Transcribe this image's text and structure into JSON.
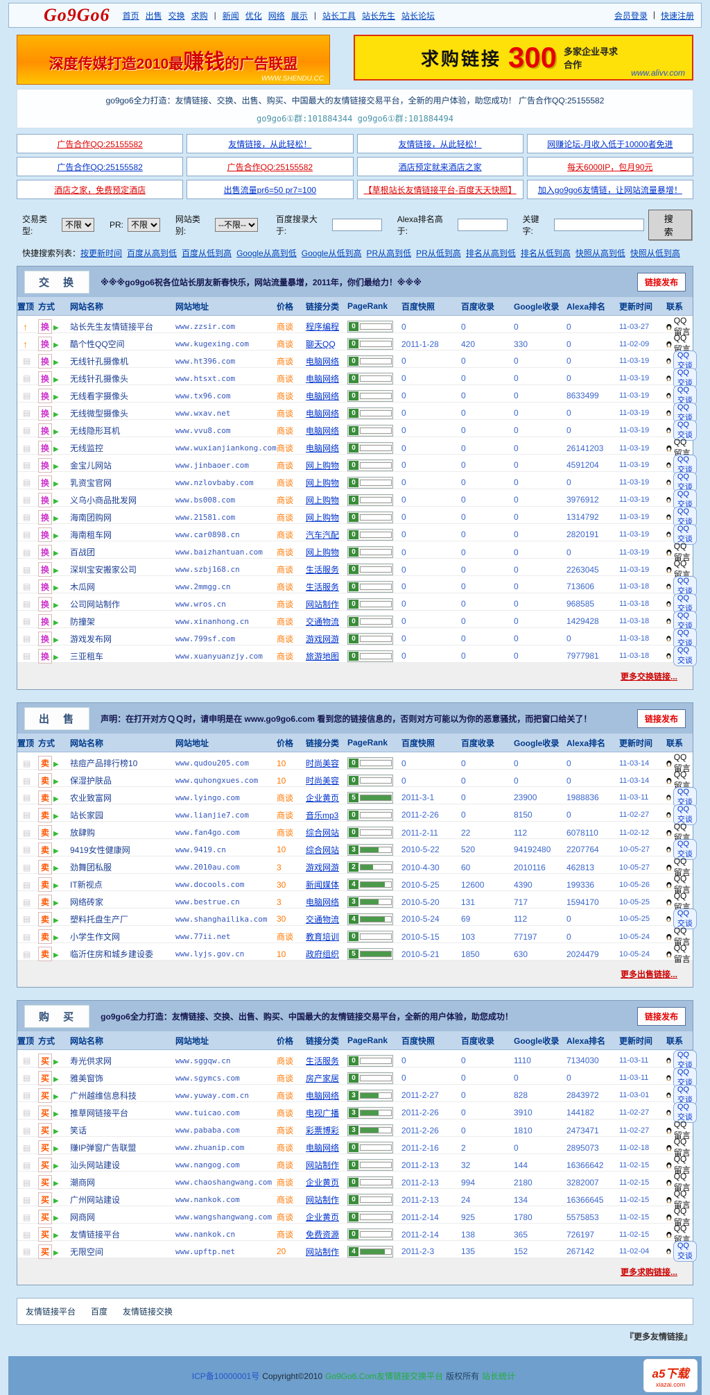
{
  "header": {
    "logo": "Go9Go6",
    "nav": [
      "首页",
      "出售",
      "交换",
      "求购",
      "|",
      "新闻",
      "优化",
      "网络",
      "展示",
      "|",
      "站长工具",
      "站长先生",
      "站长论坛"
    ],
    "right": [
      "会员登录",
      "快速注册"
    ]
  },
  "banners": {
    "left": {
      "text_pre": "深度传媒打造2010最",
      "text_big": "赚钱",
      "text_post": "的广告联盟",
      "url": "WWW.SHENDU.CC"
    },
    "right": {
      "t1": "求购链接",
      "big": "300",
      "t2": "多家企业寻求合作",
      "url": "www.alivv.com"
    }
  },
  "intro": {
    "line1": "go9go6全力打造：友情链接、交换、出售、购买、中国最大的友情链接交易平台，全新的用户体验，助您成功！ 广告合作QQ:25155582",
    "line2": "go9go6①群:101884344 go9go6①群:101884494"
  },
  "ad_grid": [
    [
      {
        "text": "广告合作QQ:25155582",
        "color": "red"
      },
      {
        "text": "友情链接，从此轻松！",
        "color": "blue"
      },
      {
        "text": "友情链接，从此轻松！",
        "color": "blue"
      },
      {
        "text": "网赚论坛-月收入低于10000者免进",
        "color": "blue"
      }
    ],
    [
      {
        "text": "广告合作QQ:25155582",
        "color": "blue"
      },
      {
        "text": "广告合作QQ:25155582",
        "color": "red"
      },
      {
        "text": "酒店预定就来酒店之家",
        "color": "blue"
      },
      {
        "text": "每天6000IP，包月90元",
        "color": "red"
      }
    ],
    [
      {
        "text": "酒店之家，免费预定酒店",
        "color": "red"
      },
      {
        "text": "出售流量pr6=50 pr7=100",
        "color": "blue"
      },
      {
        "text": "【草根站长友情链接平台-百度天天快照】",
        "color": "red"
      },
      {
        "text": "加入go9go6友情链，让网站流量暴增！",
        "color": "blue"
      }
    ]
  ],
  "filter": {
    "type_label": "交易类型:",
    "type_value": "不限",
    "pr_label": "PR:",
    "pr_value": "不限",
    "cat_label": "网站类别:",
    "cat_value": "--不限--",
    "baidu_label": "百度搜录大于:",
    "alexa_label": "Alexa排名高于:",
    "keyword_label": "关键字:",
    "search_label": "搜 索"
  },
  "quick_search": {
    "label": "快捷搜索列表：",
    "links": [
      "按更新时间",
      "百度从高到低",
      "百度从低到高",
      "Google从高到低",
      "Google从低到高",
      "PR从高到低",
      "PR从低到高",
      "排名从高到低",
      "排名从低到高",
      "快照从高到低",
      "快照从低到高"
    ]
  },
  "table_columns": [
    "置顶",
    "方式",
    "网站名称",
    "网站地址",
    "价格",
    "链接分类",
    "PageRank",
    "百度快照",
    "百度收录",
    "Google收录",
    "Alexa排名",
    "更新时间",
    "联系"
  ],
  "publish_label": "链接发布",
  "tables": [
    {
      "title": "交 换",
      "message": "※※※go9go6祝各位站长朋友新春快乐，网站流量暴增，2011年，你们最给力！※※※",
      "way": "换",
      "more": "更多交换链接...",
      "rows": [
        {
          "top": "hot",
          "name": "站长先生友情链接平台",
          "url": "www.zzsir.com",
          "price": "商谈",
          "cat": "程序编程",
          "pr": 0,
          "snap": "0",
          "baidu": "0",
          "google": "0",
          "alexa": "0",
          "time": "11-03-27",
          "contact": "QQ留言"
        },
        {
          "top": "hot",
          "name": "酷个性QQ空间",
          "url": "www.kugexing.com",
          "price": "商谈",
          "cat": "聊天QQ",
          "pr": 0,
          "snap": "2011-1-28",
          "baidu": "420",
          "google": "330",
          "alexa": "0",
          "time": "11-02-09",
          "contact": "QQ留言"
        },
        {
          "top": "",
          "name": "无线针孔摄像机",
          "url": "www.ht396.com",
          "price": "商谈",
          "cat": "电脑网络",
          "pr": 0,
          "snap": "0",
          "baidu": "0",
          "google": "0",
          "alexa": "0",
          "time": "11-03-19",
          "contact": "QQ交谈"
        },
        {
          "top": "",
          "name": "无线针孔摄像头",
          "url": "www.htsxt.com",
          "price": "商谈",
          "cat": "电脑网络",
          "pr": 0,
          "snap": "0",
          "baidu": "0",
          "google": "0",
          "alexa": "0",
          "time": "11-03-19",
          "contact": "QQ交谈"
        },
        {
          "top": "",
          "name": "无线看字摄像头",
          "url": "www.tx96.com",
          "price": "商谈",
          "cat": "电脑网络",
          "pr": 0,
          "snap": "0",
          "baidu": "0",
          "google": "0",
          "alexa": "8633499",
          "time": "11-03-19",
          "contact": "QQ交谈"
        },
        {
          "top": "",
          "name": "无线微型摄像头",
          "url": "www.wxav.net",
          "price": "商谈",
          "cat": "电脑网络",
          "pr": 0,
          "snap": "0",
          "baidu": "0",
          "google": "0",
          "alexa": "0",
          "time": "11-03-19",
          "contact": "QQ交谈"
        },
        {
          "top": "",
          "name": "无线隐形耳机",
          "url": "www.vvu8.com",
          "price": "商谈",
          "cat": "电脑网络",
          "pr": 0,
          "snap": "0",
          "baidu": "0",
          "google": "0",
          "alexa": "0",
          "time": "11-03-19",
          "contact": "QQ交谈"
        },
        {
          "top": "",
          "name": "无线监控",
          "url": "www.wuxianjiankong.com",
          "price": "商谈",
          "cat": "电脑网络",
          "pr": 0,
          "snap": "0",
          "baidu": "0",
          "google": "0",
          "alexa": "26141203",
          "time": "11-03-19",
          "contact": "QQ留言"
        },
        {
          "top": "",
          "name": "金宝儿网站",
          "url": "www.jinbaoer.com",
          "price": "商谈",
          "cat": "网上购物",
          "pr": 0,
          "snap": "0",
          "baidu": "0",
          "google": "0",
          "alexa": "4591204",
          "time": "11-03-19",
          "contact": "QQ交谈"
        },
        {
          "top": "",
          "name": "乳资宝官网",
          "url": "www.nzlovbaby.com",
          "price": "商谈",
          "cat": "网上购物",
          "pr": 0,
          "snap": "0",
          "baidu": "0",
          "google": "0",
          "alexa": "0",
          "time": "11-03-19",
          "contact": "QQ交谈"
        },
        {
          "top": "",
          "name": "义乌小商品批发网",
          "url": "www.bs008.com",
          "price": "商谈",
          "cat": "网上购物",
          "pr": 0,
          "snap": "0",
          "baidu": "0",
          "google": "0",
          "alexa": "3976912",
          "time": "11-03-19",
          "contact": "QQ交谈"
        },
        {
          "top": "",
          "name": "海南团购网",
          "url": "www.21581.com",
          "price": "商谈",
          "cat": "网上购物",
          "pr": 0,
          "snap": "0",
          "baidu": "0",
          "google": "0",
          "alexa": "1314792",
          "time": "11-03-19",
          "contact": "QQ交谈"
        },
        {
          "top": "",
          "name": "海南租车网",
          "url": "www.car0898.cn",
          "price": "商谈",
          "cat": "汽车汽配",
          "pr": 0,
          "snap": "0",
          "baidu": "0",
          "google": "0",
          "alexa": "2820191",
          "time": "11-03-19",
          "contact": "QQ交谈"
        },
        {
          "top": "",
          "name": "百战团",
          "url": "www.baizhantuan.com",
          "price": "商谈",
          "cat": "网上购物",
          "pr": 0,
          "snap": "0",
          "baidu": "0",
          "google": "0",
          "alexa": "0",
          "time": "11-03-19",
          "contact": "QQ留言"
        },
        {
          "top": "",
          "name": "深圳宝安搬家公司",
          "url": "www.szbj168.cn",
          "price": "商谈",
          "cat": "生活服务",
          "pr": 0,
          "snap": "0",
          "baidu": "0",
          "google": "0",
          "alexa": "2263045",
          "time": "11-03-19",
          "contact": "QQ留言"
        },
        {
          "top": "",
          "name": "木瓜网",
          "url": "www.2mmgg.cn",
          "price": "商谈",
          "cat": "生活服务",
          "pr": 0,
          "snap": "0",
          "baidu": "0",
          "google": "0",
          "alexa": "713606",
          "time": "11-03-18",
          "contact": "QQ交谈"
        },
        {
          "top": "",
          "name": "公司网站制作",
          "url": "www.wros.cn",
          "price": "商谈",
          "cat": "网站制作",
          "pr": 0,
          "snap": "0",
          "baidu": "0",
          "google": "0",
          "alexa": "968585",
          "time": "11-03-18",
          "contact": "QQ交谈"
        },
        {
          "top": "",
          "name": "防撞架",
          "url": "www.xinanhong.cn",
          "price": "商谈",
          "cat": "交通物流",
          "pr": 0,
          "snap": "0",
          "baidu": "0",
          "google": "0",
          "alexa": "1429428",
          "time": "11-03-18",
          "contact": "QQ交谈"
        },
        {
          "top": "",
          "name": "游戏发布网",
          "url": "www.799sf.com",
          "price": "商谈",
          "cat": "游戏网游",
          "pr": 0,
          "snap": "0",
          "baidu": "0",
          "google": "0",
          "alexa": "0",
          "time": "11-03-18",
          "contact": "QQ交谈"
        },
        {
          "top": "",
          "name": "三亚租车",
          "url": "www.xuanyuanzjy.com",
          "price": "商谈",
          "cat": "旅游地图",
          "pr": 0,
          "snap": "0",
          "baidu": "0",
          "google": "0",
          "alexa": "7977981",
          "time": "11-03-18",
          "contact": "QQ交谈"
        }
      ]
    },
    {
      "title": "出 售",
      "message": "声明：在打开对方ＱＱ时，请申明是在 www.go9go6.com 看到您的链接信息的，否则对方可能以为你的恶意骚扰，而把窗口给关了！",
      "way": "卖",
      "more": "更多出售链接...",
      "rows": [
        {
          "top": "",
          "name": "祛痘产品排行榜10",
          "url": "www.qudou205.com",
          "price": "10",
          "cat": "时尚美容",
          "pr": 0,
          "snap": "0",
          "baidu": "0",
          "google": "0",
          "alexa": "0",
          "time": "11-03-14",
          "contact": "QQ留言"
        },
        {
          "top": "",
          "name": "保湿护肤品",
          "url": "www.quhongxues.com",
          "price": "10",
          "cat": "时尚美容",
          "pr": 0,
          "snap": "0",
          "baidu": "0",
          "google": "0",
          "alexa": "0",
          "time": "11-03-14",
          "contact": "QQ留言"
        },
        {
          "top": "",
          "name": "农业致富网",
          "url": "www.lyingo.com",
          "price": "商谈",
          "cat": "企业黄页",
          "pr": 5,
          "snap": "2011-3-1",
          "baidu": "0",
          "google": "23900",
          "alexa": "1988836",
          "time": "11-03-11",
          "contact": "QQ交谈"
        },
        {
          "top": "",
          "name": "站长家园",
          "url": "www.lianjie7.com",
          "price": "商谈",
          "cat": "音乐mp3",
          "pr": 0,
          "snap": "2011-2-26",
          "baidu": "0",
          "google": "8150",
          "alexa": "0",
          "time": "11-02-27",
          "contact": "QQ交谈"
        },
        {
          "top": "",
          "name": "放肆购",
          "url": "www.fan4go.com",
          "price": "商谈",
          "cat": "综合网站",
          "pr": 0,
          "snap": "2011-2-11",
          "baidu": "22",
          "google": "112",
          "alexa": "6078110",
          "time": "11-02-12",
          "contact": "QQ留言"
        },
        {
          "top": "",
          "name": "9419女性健康网",
          "url": "www.9419.cn",
          "price": "10",
          "cat": "综合网站",
          "pr": 3,
          "snap": "2010-5-22",
          "baidu": "520",
          "google": "94192480",
          "alexa": "2207764",
          "time": "10-05-27",
          "contact": "QQ交谈"
        },
        {
          "top": "",
          "name": "劲舞团私服",
          "url": "www.2010au.com",
          "price": "3",
          "cat": "游戏网游",
          "pr": 2,
          "snap": "2010-4-30",
          "baidu": "60",
          "google": "2010116",
          "alexa": "462813",
          "time": "10-05-27",
          "contact": "QQ留言"
        },
        {
          "top": "",
          "name": "IT新视点",
          "url": "www.docools.com",
          "price": "30",
          "cat": "新闻媒体",
          "pr": 4,
          "snap": "2010-5-25",
          "baidu": "12600",
          "google": "4390",
          "alexa": "199336",
          "time": "10-05-26",
          "contact": "QQ留言"
        },
        {
          "top": "",
          "name": "网络砖家",
          "url": "www.bestrue.cn",
          "price": "3",
          "cat": "电脑网络",
          "pr": 3,
          "snap": "2010-5-20",
          "baidu": "131",
          "google": "717",
          "alexa": "1594170",
          "time": "10-05-25",
          "contact": "QQ留言"
        },
        {
          "top": "",
          "name": "塑料托盘生产厂",
          "url": "www.shanghailika.com",
          "price": "30",
          "cat": "交通物流",
          "pr": 4,
          "snap": "2010-5-24",
          "baidu": "69",
          "google": "112",
          "alexa": "0",
          "time": "10-05-25",
          "contact": "QQ交谈"
        },
        {
          "top": "",
          "name": "小学生作文网",
          "url": "www.77ii.net",
          "price": "商谈",
          "cat": "教育培训",
          "pr": 0,
          "snap": "2010-5-15",
          "baidu": "103",
          "google": "77197",
          "alexa": "0",
          "time": "10-05-24",
          "contact": "QQ留言"
        },
        {
          "top": "",
          "name": "临沂住房和城乡建设委",
          "url": "www.lyjs.gov.cn",
          "price": "10",
          "cat": "政府组织",
          "pr": 5,
          "snap": "2010-5-21",
          "baidu": "1850",
          "google": "630",
          "alexa": "2024479",
          "time": "10-05-24",
          "contact": "QQ留言"
        }
      ]
    },
    {
      "title": "购 买",
      "message": "go9go6全力打造：友情链接、交换、出售、购买、中国最大的友情链接交易平台，全新的用户体验，助您成功！",
      "way": "买",
      "more": "更多求购链接...",
      "rows": [
        {
          "top": "",
          "name": "寿光供求网",
          "url": "www.sggqw.cn",
          "price": "商谈",
          "cat": "生活服务",
          "pr": 0,
          "snap": "0",
          "baidu": "0",
          "google": "1110",
          "alexa": "7134030",
          "time": "11-03-11",
          "contact": "QQ交谈"
        },
        {
          "top": "",
          "name": "雅美窗饰",
          "url": "www.sgymcs.com",
          "price": "商谈",
          "cat": "房产家居",
          "pr": 0,
          "snap": "0",
          "baidu": "0",
          "google": "0",
          "alexa": "0",
          "time": "11-03-11",
          "contact": "QQ交谈"
        },
        {
          "top": "",
          "name": "广州越维信息科技",
          "url": "www.yuway.com.cn",
          "price": "商谈",
          "cat": "电脑网络",
          "pr": 3,
          "snap": "2011-2-27",
          "baidu": "0",
          "google": "828",
          "alexa": "2843972",
          "time": "11-03-01",
          "contact": "QQ交谈"
        },
        {
          "top": "",
          "name": "推草网链接平台",
          "url": "www.tuicao.com",
          "price": "商谈",
          "cat": "电视广播",
          "pr": 3,
          "snap": "2011-2-26",
          "baidu": "0",
          "google": "3910",
          "alexa": "144182",
          "time": "11-02-27",
          "contact": "QQ交谈"
        },
        {
          "top": "",
          "name": "笑话",
          "url": "www.pababa.com",
          "price": "商谈",
          "cat": "彩票博彩",
          "pr": 3,
          "snap": "2011-2-26",
          "baidu": "0",
          "google": "1810",
          "alexa": "2473471",
          "time": "11-02-27",
          "contact": "QQ留言"
        },
        {
          "top": "",
          "name": "赚IP弹窗广告联盟",
          "url": "www.zhuanip.com",
          "price": "商谈",
          "cat": "电脑网络",
          "pr": 0,
          "snap": "2011-2-16",
          "baidu": "2",
          "google": "0",
          "alexa": "2895073",
          "time": "11-02-18",
          "contact": "QQ留言"
        },
        {
          "top": "",
          "name": "汕头网站建设",
          "url": "www.nangog.com",
          "price": "商谈",
          "cat": "网站制作",
          "pr": 0,
          "snap": "2011-2-13",
          "baidu": "32",
          "google": "144",
          "alexa": "16366642",
          "time": "11-02-15",
          "contact": "QQ留言"
        },
        {
          "top": "",
          "name": "潮商网",
          "url": "www.chaoshangwang.com",
          "price": "商谈",
          "cat": "企业黄页",
          "pr": 0,
          "snap": "2011-2-13",
          "baidu": "994",
          "google": "2180",
          "alexa": "3282007",
          "time": "11-02-15",
          "contact": "QQ留言"
        },
        {
          "top": "",
          "name": "广州网站建设",
          "url": "www.nankok.com",
          "price": "商谈",
          "cat": "网站制作",
          "pr": 0,
          "snap": "2011-2-13",
          "baidu": "24",
          "google": "134",
          "alexa": "16366645",
          "time": "11-02-15",
          "contact": "QQ留言"
        },
        {
          "top": "",
          "name": "网商网",
          "url": "www.wangshangwang.com",
          "price": "商谈",
          "cat": "企业黄页",
          "pr": 0,
          "snap": "2011-2-14",
          "baidu": "925",
          "google": "1780",
          "alexa": "5575853",
          "time": "11-02-15",
          "contact": "QQ留言"
        },
        {
          "top": "",
          "name": "友情链接平台",
          "url": "www.nankok.cn",
          "price": "商谈",
          "cat": "免费资源",
          "pr": 0,
          "snap": "2011-2-14",
          "baidu": "138",
          "google": "365",
          "alexa": "726197",
          "time": "11-02-15",
          "contact": "QQ留言"
        },
        {
          "top": "",
          "name": "无限空间",
          "url": "www.upftp.net",
          "price": "20",
          "cat": "网站制作",
          "pr": 4,
          "snap": "2011-2-3",
          "baidu": "135",
          "google": "152",
          "alexa": "267142",
          "time": "11-02-04",
          "contact": "QQ交谈"
        }
      ]
    }
  ],
  "friend_links": {
    "links": [
      "友情链接平台",
      "百度",
      "友情链接交换"
    ],
    "more": "『更多友情链接』"
  },
  "footer": {
    "segments": [
      {
        "text": "ICP备10000001号",
        "color": "#2255cc"
      },
      {
        "text": "Copyright©2010",
        "color": "#1c2a3a"
      },
      {
        "text": "Go9Go6.Com友情链接交换平台",
        "color": "#1fae3a"
      },
      {
        "text": "版权所有",
        "color": "#224466"
      },
      {
        "text": "站长统计",
        "color": "#1fae3a"
      }
    ],
    "a5_text": "a5下载",
    "a5_url": "xiazai.com"
  }
}
